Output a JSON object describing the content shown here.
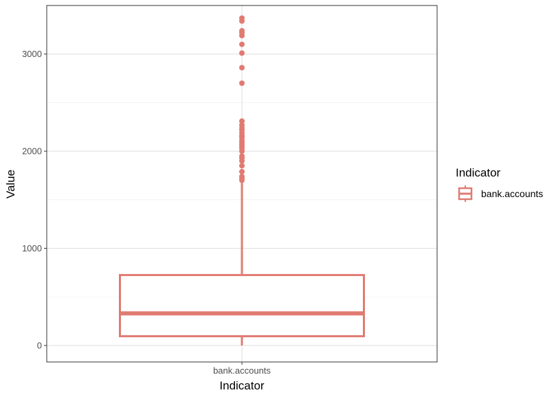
{
  "chart_data": {
    "type": "boxplot",
    "xlabel": "Indicator",
    "ylabel": "Value",
    "categories": [
      "bank.accounts"
    ],
    "ylim": [
      -170,
      3500
    ],
    "y_ticks": [
      0,
      1000,
      2000,
      3000
    ],
    "y_tick_labels": [
      "0",
      "1000",
      "2000",
      "3000"
    ],
    "grid": true,
    "color": "#e07b72",
    "legend": {
      "title": "Indicator",
      "entries": [
        "bank.accounts"
      ],
      "placement": "right"
    },
    "boxes": [
      {
        "category": "bank.accounts",
        "min": 0,
        "q1": 95,
        "median": 330,
        "q3": 725,
        "whisker_high": 1690,
        "outliers": [
          1700,
          1720,
          1740,
          1790,
          1850,
          1900,
          1930,
          1950,
          2000,
          2030,
          2050,
          2070,
          2090,
          2110,
          2140,
          2160,
          2190,
          2220,
          2240,
          2270,
          2310,
          2700,
          2860,
          3010,
          3100,
          3190,
          3220,
          3240,
          3340,
          3370
        ]
      }
    ]
  }
}
